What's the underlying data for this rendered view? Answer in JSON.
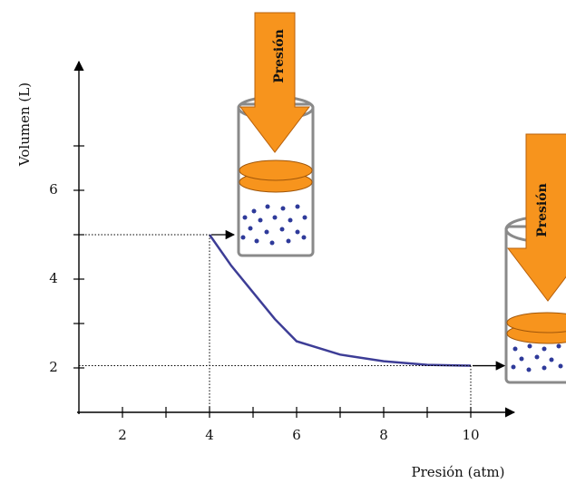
{
  "chart_data": {
    "type": "line",
    "x_label": "Presión (atm)",
    "y_label": "Volumen (L)",
    "x": [
      4,
      4.5,
      5,
      5.5,
      6,
      7,
      8,
      9,
      10
    ],
    "series": [
      {
        "color": "#3d3d96",
        "values": [
          5,
          4.3,
          3.7,
          3.1,
          2.6,
          2.3,
          2.15,
          2.07,
          2.05
        ]
      }
    ],
    "xlim": [
      1,
      11
    ],
    "ylim": [
      1,
      9
    ],
    "xticks": [
      2,
      4,
      6,
      8,
      10
    ],
    "xminor": [
      3,
      5,
      7,
      9
    ],
    "yticks": [
      2,
      4,
      6
    ],
    "yminor": [
      3,
      5,
      7
    ],
    "annotations": [
      "Presión",
      "Presión"
    ]
  }
}
